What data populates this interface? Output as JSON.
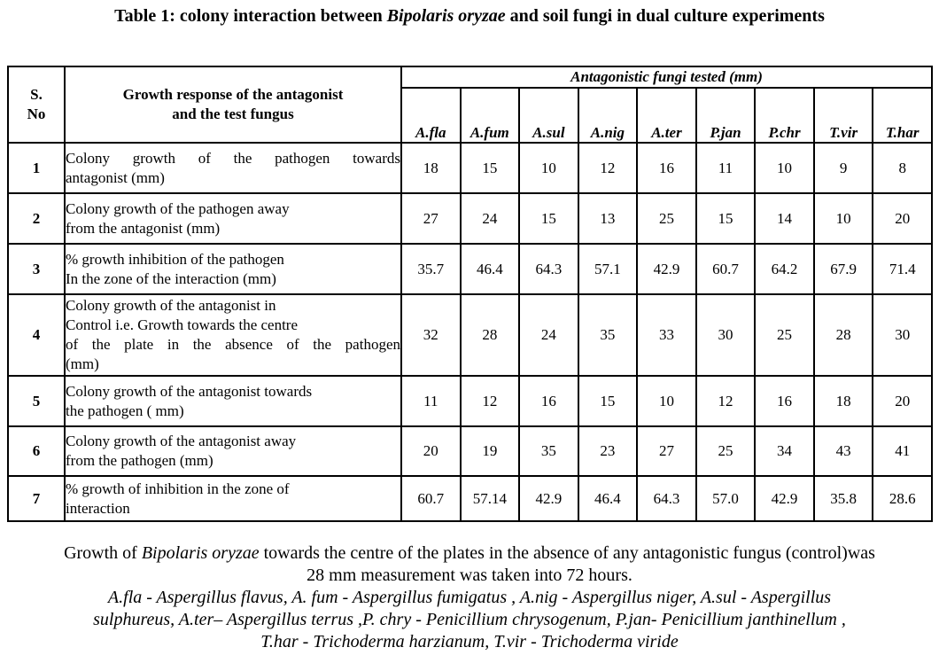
{
  "title": {
    "prefix": "Table 1: colony interaction between ",
    "species": "Bipolaris oryzae",
    "suffix": " and soil fungi in dual culture experiments"
  },
  "table": {
    "header": {
      "sno": "S.\nNo",
      "growth_response": "Growth response of the antagonist\nand the test fungus",
      "span": "Antagonistic fungi tested (mm)",
      "fungi": [
        "A.fla",
        "A.fum",
        "A.sul",
        "A.nig",
        "A.ter",
        "P.jan",
        "P.chr",
        "T.vir",
        "T.har"
      ]
    },
    "rows": [
      {
        "no": "1",
        "desc": [
          "Colony growth of the pathogen towards",
          "antagonist (mm)"
        ],
        "justify": [
          0
        ],
        "values": [
          "18",
          "15",
          "10",
          "12",
          "16",
          "11",
          "10",
          "9",
          "8"
        ]
      },
      {
        "no": "2",
        "desc": [
          "Colony growth of the pathogen away",
          "from the antagonist (mm)"
        ],
        "justify": [],
        "values": [
          "27",
          "24",
          "15",
          "13",
          "25",
          "15",
          "14",
          "10",
          "20"
        ]
      },
      {
        "no": "3",
        "desc": [
          "% growth inhibition of the pathogen",
          "In the zone of the interaction (mm)"
        ],
        "justify": [],
        "values": [
          "35.7",
          "46.4",
          "64.3",
          "57.1",
          "42.9",
          "60.7",
          "64.2",
          "67.9",
          "71.4"
        ]
      },
      {
        "no": "4",
        "desc": [
          "Colony growth of the antagonist in",
          "Control i.e. Growth towards the centre",
          "of the plate in the absence of the pathogen",
          "(mm)"
        ],
        "justify": [
          2
        ],
        "values": [
          "32",
          "28",
          "24",
          "35",
          "33",
          "30",
          "25",
          "28",
          "30"
        ]
      },
      {
        "no": "5",
        "desc": [
          "Colony growth of the antagonist towards",
          "the pathogen  ( mm)"
        ],
        "justify": [],
        "values": [
          "11",
          "12",
          "16",
          "15",
          "10",
          "12",
          "16",
          "18",
          "20"
        ]
      },
      {
        "no": "6",
        "desc": [
          "Colony growth of the antagonist away",
          "from the pathogen (mm)"
        ],
        "justify": [],
        "values": [
          "20",
          "19",
          "35",
          "23",
          "27",
          "25",
          "34",
          "43",
          "41"
        ]
      },
      {
        "no": "7",
        "desc": [
          "% growth of inhibition in the zone of",
          "interaction"
        ],
        "justify": [],
        "values": [
          "60.7",
          "57.14",
          "42.9",
          "46.4",
          "64.3",
          "57.0",
          "42.9",
          "35.8",
          "28.6"
        ]
      }
    ]
  },
  "notes": {
    "control_prefix": "Growth of ",
    "control_species": "Bipolaris  oryzae",
    "control_rest": " towards the centre of the plates in the absence of any antagonistic fungus (control)was",
    "control_line2": "28 mm measurement was taken into 72 hours.",
    "abbrev_lines": [
      "A.fla - Aspergillus flavus,  A. fum - Aspergillus fumigatus , A.nig - Aspergillus niger,  A.sul - Aspergillus",
      "sulphureus, A.ter– Aspergillus terrus ,P. chry - Penicillium chrysogenum, P.jan-  Penicillium janthinellum ,",
      "T.har -  Trichoderma harzianum,  T.vir - Trichoderma viride"
    ]
  }
}
